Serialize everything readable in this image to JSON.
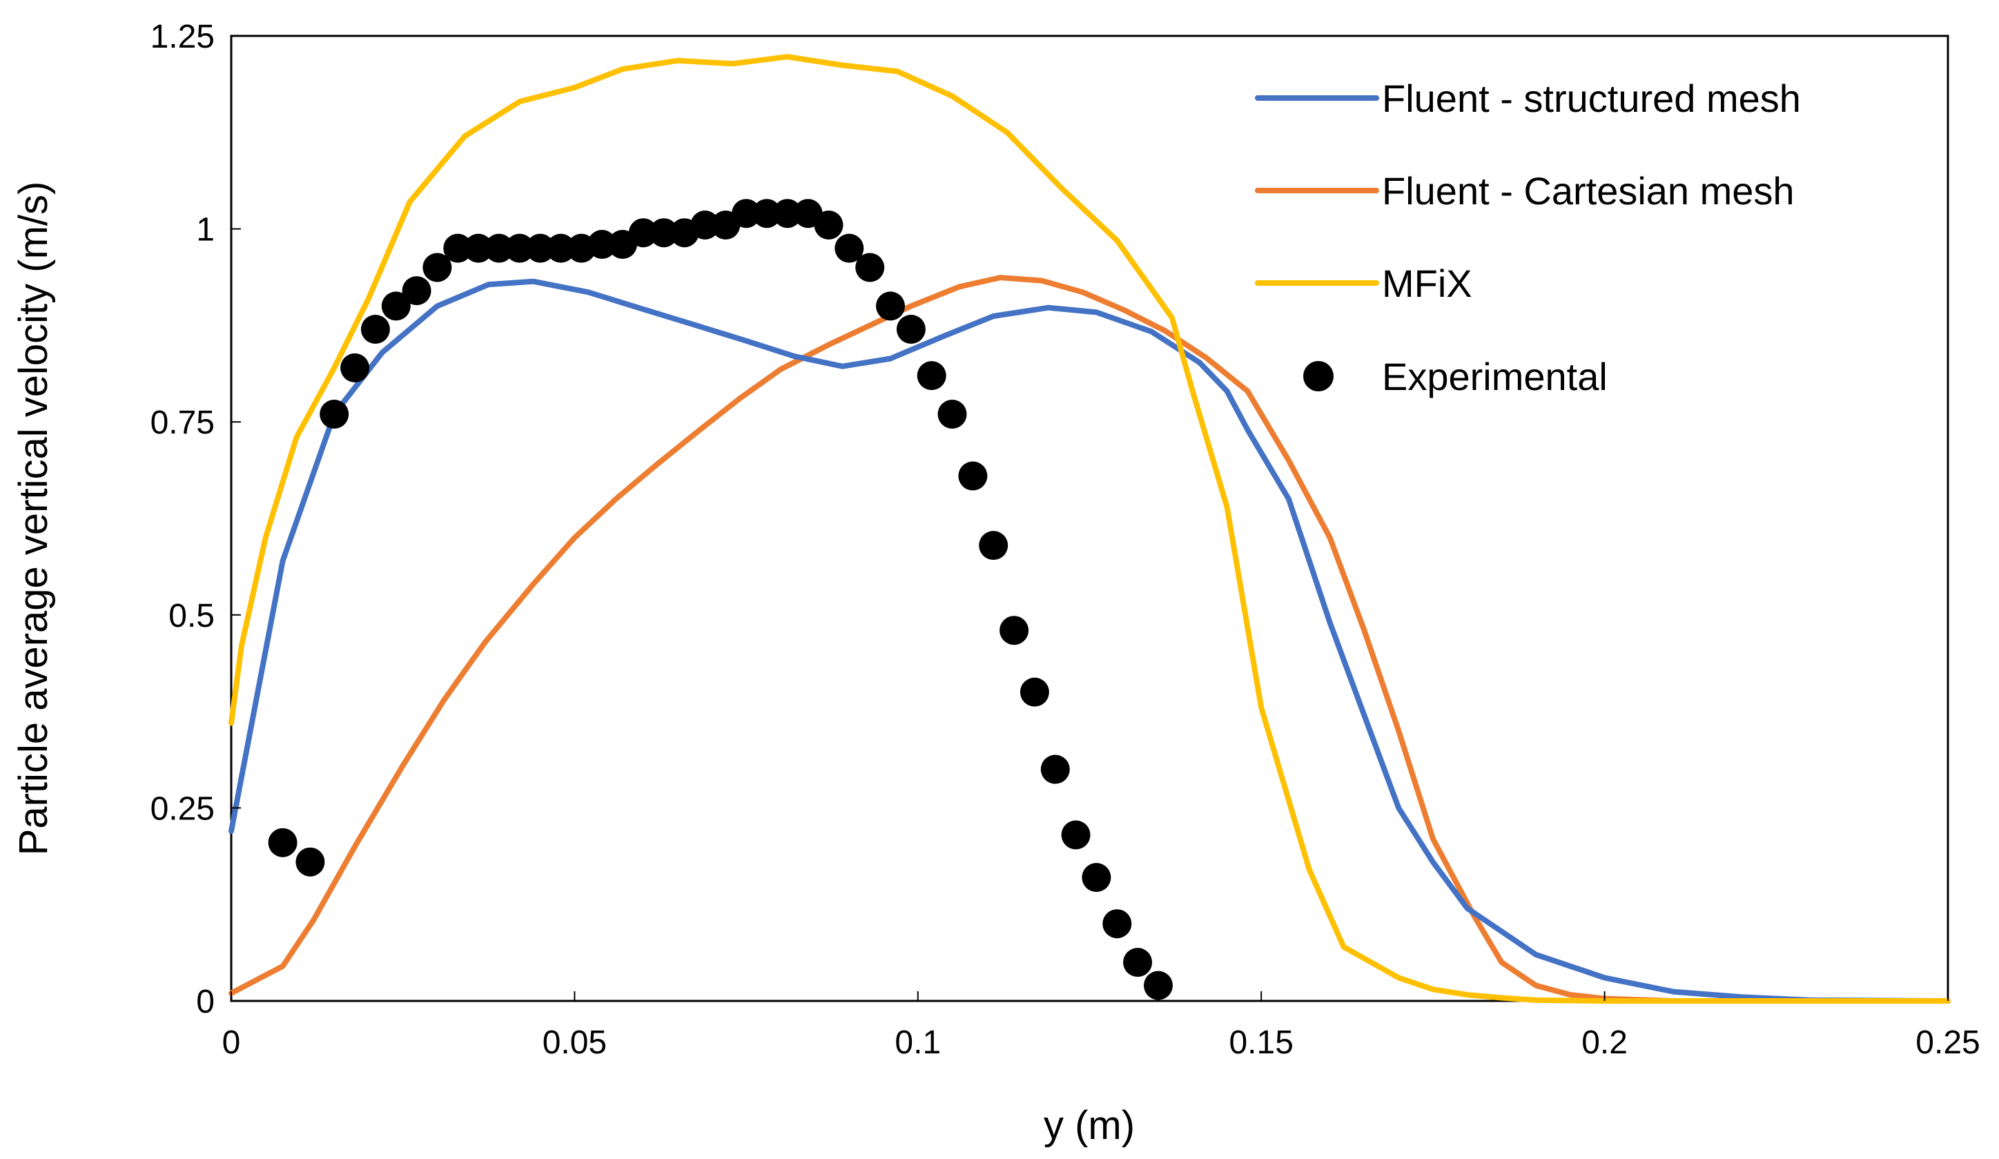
{
  "chart_data": {
    "type": "line",
    "title": "",
    "xlabel": "y (m)",
    "ylabel": "Particle average vertical velocity (m/s)",
    "xlim": [
      0,
      0.25
    ],
    "ylim": [
      0,
      1.25
    ],
    "xticks": [
      0,
      0.05,
      0.1,
      0.15,
      0.2,
      0.25
    ],
    "yticks": [
      0,
      0.25,
      0.5,
      0.75,
      1,
      1.25
    ],
    "xtick_labels": [
      "0",
      "0.05",
      "0.1",
      "0.15",
      "0.2",
      "0.25"
    ],
    "ytick_labels": [
      "0",
      "0.25",
      "0.5",
      "0.75",
      "1",
      "1.25"
    ],
    "grid": false,
    "legend_position": "top-right",
    "series": [
      {
        "name": "Fluent - structured mesh",
        "kind": "line",
        "color": "#4472C4",
        "points": [
          [
            0,
            0.22
          ],
          [
            0.0075,
            0.57
          ],
          [
            0.015,
            0.76
          ],
          [
            0.022,
            0.84
          ],
          [
            0.03,
            0.9
          ],
          [
            0.0375,
            0.928
          ],
          [
            0.044,
            0.932
          ],
          [
            0.052,
            0.918
          ],
          [
            0.06,
            0.896
          ],
          [
            0.067,
            0.877
          ],
          [
            0.075,
            0.855
          ],
          [
            0.082,
            0.835
          ],
          [
            0.089,
            0.822
          ],
          [
            0.096,
            0.832
          ],
          [
            0.104,
            0.862
          ],
          [
            0.111,
            0.887
          ],
          [
            0.119,
            0.898
          ],
          [
            0.126,
            0.892
          ],
          [
            0.134,
            0.867
          ],
          [
            0.141,
            0.827
          ],
          [
            0.145,
            0.79
          ],
          [
            0.148,
            0.74
          ],
          [
            0.154,
            0.65
          ],
          [
            0.16,
            0.49
          ],
          [
            0.165,
            0.37
          ],
          [
            0.17,
            0.25
          ],
          [
            0.175,
            0.18
          ],
          [
            0.18,
            0.12
          ],
          [
            0.185,
            0.09
          ],
          [
            0.19,
            0.06
          ],
          [
            0.2,
            0.03
          ],
          [
            0.21,
            0.012
          ],
          [
            0.22,
            0.005
          ],
          [
            0.23,
            0.001
          ],
          [
            0.25,
            0
          ]
        ]
      },
      {
        "name": "Fluent - Cartesian mesh",
        "kind": "line",
        "color": "#ED7D31",
        "points": [
          [
            0,
            0.01
          ],
          [
            0.0075,
            0.045
          ],
          [
            0.012,
            0.105
          ],
          [
            0.018,
            0.2
          ],
          [
            0.025,
            0.305
          ],
          [
            0.031,
            0.39
          ],
          [
            0.037,
            0.465
          ],
          [
            0.044,
            0.54
          ],
          [
            0.05,
            0.6
          ],
          [
            0.056,
            0.65
          ],
          [
            0.062,
            0.695
          ],
          [
            0.068,
            0.738
          ],
          [
            0.074,
            0.78
          ],
          [
            0.08,
            0.818
          ],
          [
            0.087,
            0.85
          ],
          [
            0.093,
            0.875
          ],
          [
            0.099,
            0.9
          ],
          [
            0.106,
            0.925
          ],
          [
            0.112,
            0.937
          ],
          [
            0.118,
            0.933
          ],
          [
            0.124,
            0.918
          ],
          [
            0.13,
            0.895
          ],
          [
            0.136,
            0.868
          ],
          [
            0.142,
            0.833
          ],
          [
            0.148,
            0.79
          ],
          [
            0.154,
            0.7
          ],
          [
            0.16,
            0.6
          ],
          [
            0.165,
            0.48
          ],
          [
            0.17,
            0.35
          ],
          [
            0.175,
            0.21
          ],
          [
            0.181,
            0.11
          ],
          [
            0.185,
            0.05
          ],
          [
            0.19,
            0.02
          ],
          [
            0.195,
            0.008
          ],
          [
            0.2,
            0.003
          ],
          [
            0.21,
            0
          ],
          [
            0.25,
            0
          ]
        ]
      },
      {
        "name": "MFiX",
        "kind": "line",
        "color": "#FFC000",
        "points": [
          [
            0,
            0.36
          ],
          [
            0.0015,
            0.46
          ],
          [
            0.005,
            0.6
          ],
          [
            0.0095,
            0.73
          ],
          [
            0.015,
            0.82
          ],
          [
            0.02,
            0.91
          ],
          [
            0.026,
            1.035
          ],
          [
            0.034,
            1.12
          ],
          [
            0.042,
            1.165
          ],
          [
            0.05,
            1.183
          ],
          [
            0.057,
            1.207
          ],
          [
            0.065,
            1.218
          ],
          [
            0.073,
            1.214
          ],
          [
            0.081,
            1.223
          ],
          [
            0.089,
            1.212
          ],
          [
            0.097,
            1.204
          ],
          [
            0.105,
            1.172
          ],
          [
            0.113,
            1.125
          ],
          [
            0.121,
            1.052
          ],
          [
            0.129,
            0.985
          ],
          [
            0.137,
            0.885
          ],
          [
            0.14,
            0.79
          ],
          [
            0.145,
            0.64
          ],
          [
            0.15,
            0.38
          ],
          [
            0.157,
            0.17
          ],
          [
            0.162,
            0.07
          ],
          [
            0.17,
            0.03
          ],
          [
            0.175,
            0.015
          ],
          [
            0.18,
            0.008
          ],
          [
            0.185,
            0.004
          ],
          [
            0.19,
            0.001
          ],
          [
            0.2,
            0
          ],
          [
            0.25,
            0
          ]
        ]
      },
      {
        "name": "Experimental",
        "kind": "scatter",
        "color": "#000000",
        "points": [
          [
            0.0075,
            0.205
          ],
          [
            0.0115,
            0.18
          ],
          [
            0.015,
            0.76
          ],
          [
            0.018,
            0.82
          ],
          [
            0.021,
            0.87
          ],
          [
            0.024,
            0.9
          ],
          [
            0.027,
            0.92
          ],
          [
            0.03,
            0.95
          ],
          [
            0.033,
            0.975
          ],
          [
            0.036,
            0.975
          ],
          [
            0.039,
            0.975
          ],
          [
            0.042,
            0.975
          ],
          [
            0.045,
            0.975
          ],
          [
            0.048,
            0.975
          ],
          [
            0.051,
            0.975
          ],
          [
            0.054,
            0.98
          ],
          [
            0.057,
            0.98
          ],
          [
            0.06,
            0.995
          ],
          [
            0.063,
            0.995
          ],
          [
            0.066,
            0.995
          ],
          [
            0.069,
            1.005
          ],
          [
            0.072,
            1.005
          ],
          [
            0.075,
            1.02
          ],
          [
            0.078,
            1.02
          ],
          [
            0.081,
            1.02
          ],
          [
            0.084,
            1.02
          ],
          [
            0.087,
            1.005
          ],
          [
            0.09,
            0.975
          ],
          [
            0.093,
            0.95
          ],
          [
            0.096,
            0.9
          ],
          [
            0.099,
            0.87
          ],
          [
            0.102,
            0.81
          ],
          [
            0.105,
            0.76
          ],
          [
            0.108,
            0.68
          ],
          [
            0.111,
            0.59
          ],
          [
            0.114,
            0.48
          ],
          [
            0.117,
            0.4
          ],
          [
            0.12,
            0.3
          ],
          [
            0.123,
            0.215
          ],
          [
            0.126,
            0.16
          ],
          [
            0.129,
            0.1
          ],
          [
            0.132,
            0.05
          ],
          [
            0.135,
            0.02
          ]
        ]
      }
    ]
  }
}
